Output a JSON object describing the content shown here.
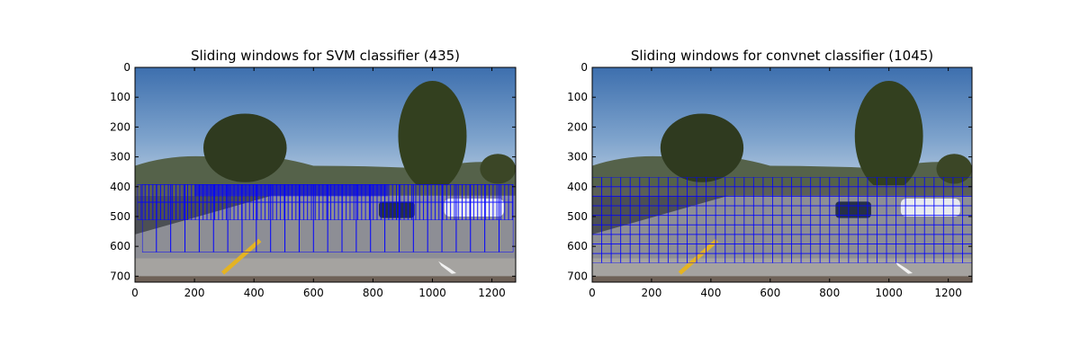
{
  "chart_data": [
    {
      "type": "image",
      "title": "Sliding windows for SVM classifier (435)",
      "xlim": [
        0,
        1280
      ],
      "ylim": [
        720,
        0
      ],
      "xticks": [
        0,
        200,
        400,
        600,
        800,
        1000,
        1200
      ],
      "yticks": [
        0,
        100,
        200,
        300,
        400,
        500,
        600,
        700
      ]
    },
    {
      "type": "image",
      "title": "Sliding windows for convnet classifier (1045)",
      "xlim": [
        0,
        1280
      ],
      "ylim": [
        720,
        0
      ],
      "xticks": [
        0,
        200,
        400,
        600,
        800,
        1000,
        1200
      ],
      "yticks": [
        0,
        100,
        200,
        300,
        400,
        500,
        600,
        700
      ]
    }
  ]
}
